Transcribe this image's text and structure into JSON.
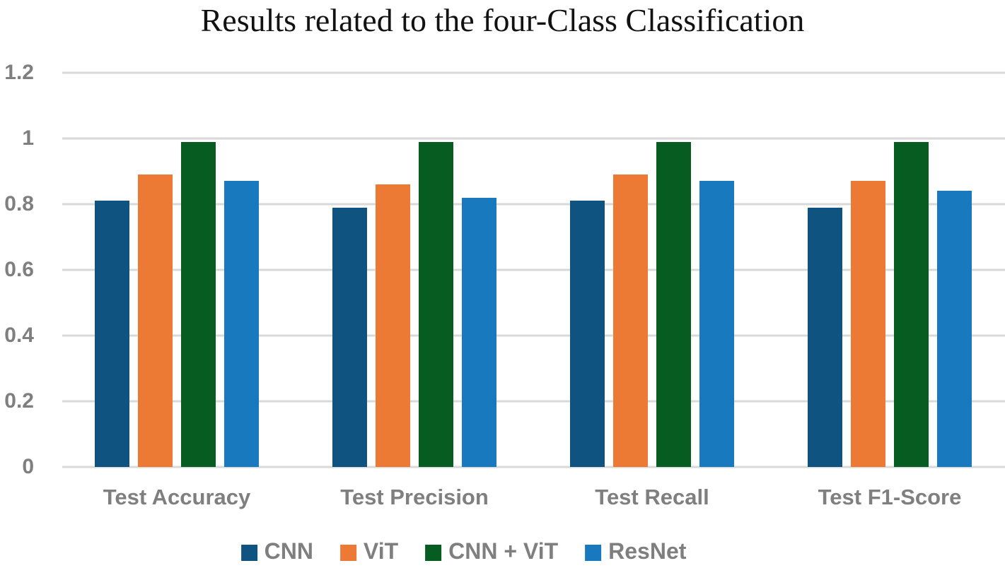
{
  "title": "Results related to the four-Class Classification",
  "chart_data": {
    "type": "bar",
    "title": "Results related to the four-Class Classification",
    "categories": [
      "Test Accuracy",
      "Test Precision",
      "Test Recall",
      "Test F1-Score"
    ],
    "series": [
      {
        "name": "CNN",
        "color": "#0F5480",
        "values": [
          0.81,
          0.79,
          0.81,
          0.79
        ]
      },
      {
        "name": "ViT",
        "color": "#EC7A35",
        "values": [
          0.89,
          0.86,
          0.89,
          0.87
        ]
      },
      {
        "name": "CNN + ViT",
        "color": "#075C22",
        "values": [
          0.99,
          0.99,
          0.99,
          0.99
        ]
      },
      {
        "name": "ResNet",
        "color": "#1879BF",
        "values": [
          0.87,
          0.82,
          0.87,
          0.84
        ]
      }
    ],
    "xlabel": "",
    "ylabel": "",
    "ylim": [
      0,
      1.2
    ],
    "yticks": [
      0,
      0.2,
      0.4,
      0.6,
      0.8,
      1,
      1.2
    ],
    "ytick_labels": [
      "0",
      "0.2",
      "0.4",
      "0.6",
      "0.8",
      "1",
      "1.2"
    ],
    "grid": true,
    "gridline_color": "#D9D9D9",
    "axis_text_color": "#7F7F7F",
    "legend_position": "bottom",
    "legend_labels": [
      "CNN",
      "ViT",
      "CNN + ViT",
      "ResNet"
    ]
  }
}
